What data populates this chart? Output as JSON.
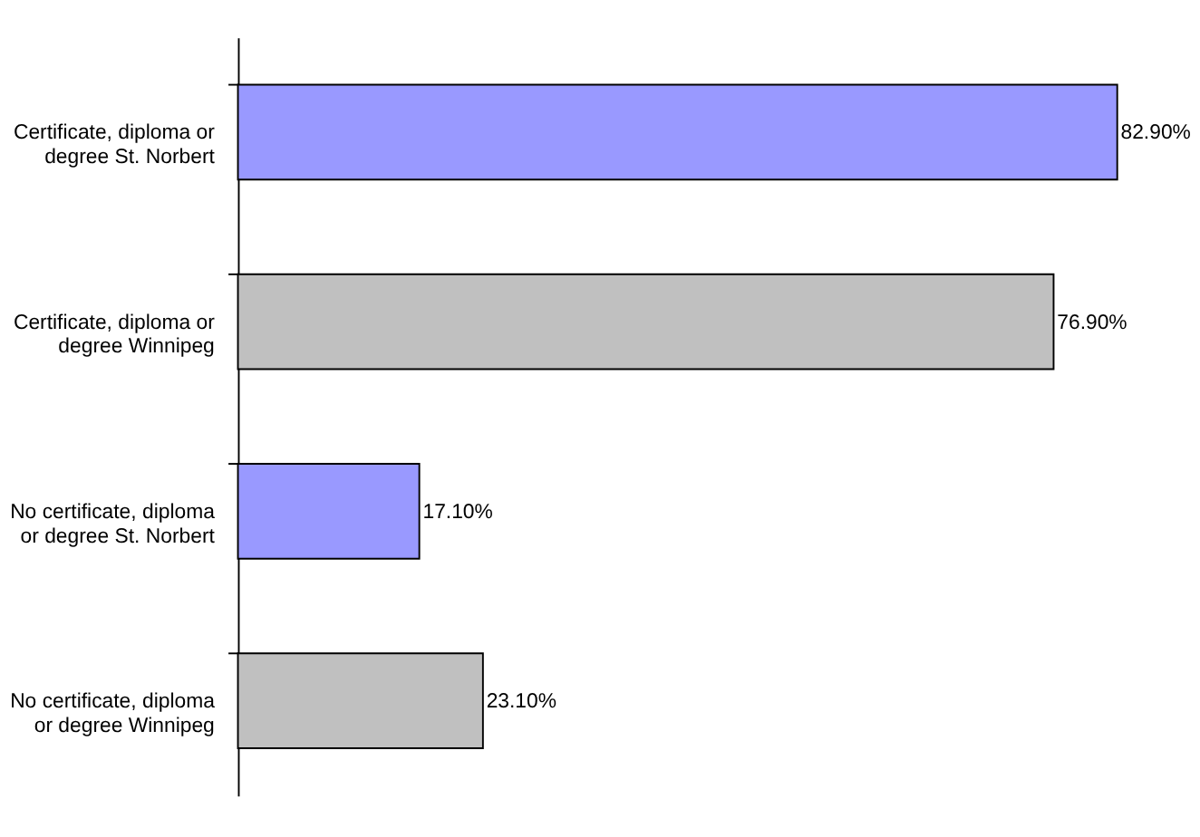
{
  "chart_data": {
    "type": "bar",
    "orientation": "horizontal",
    "data_labels": true,
    "categories": [
      "Certificate, diploma or degree St. Norbert",
      "Certificate, diploma or degree Winnipeg",
      "No certificate, diploma or degree St. Norbert",
      "No certificate, diploma or degree Winnipeg"
    ],
    "values": [
      82.9,
      76.9,
      17.1,
      23.1
    ],
    "value_labels": [
      "82.90%",
      "76.90%",
      "17.10%",
      "23.10%"
    ],
    "colors": [
      "#9999ff",
      "#c0c0c0",
      "#9999ff",
      "#c0c0c0"
    ],
    "grid": false
  }
}
